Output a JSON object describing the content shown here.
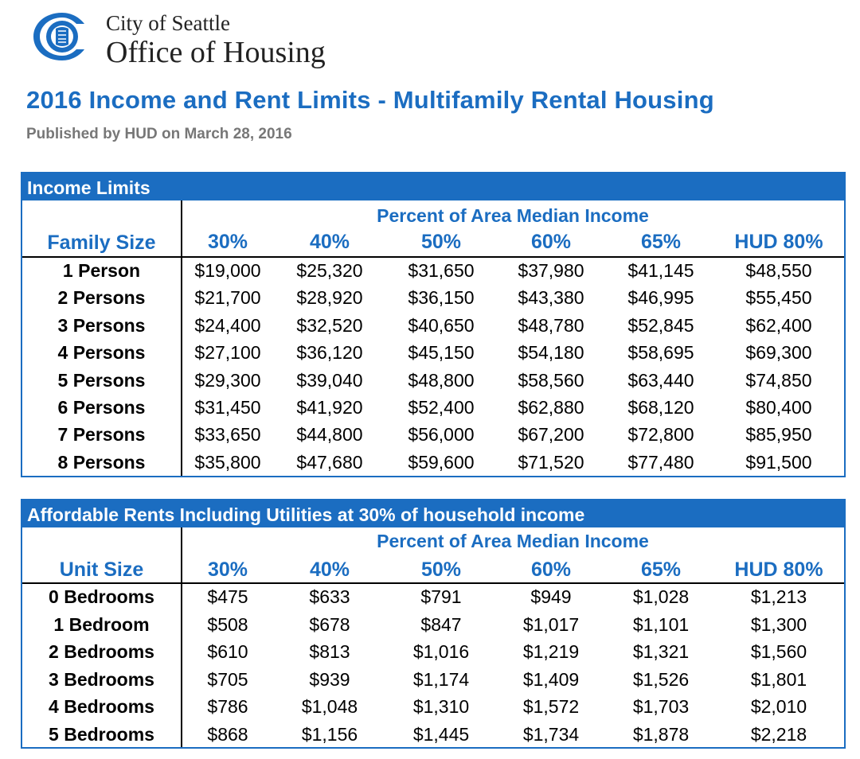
{
  "header": {
    "org_line1": "City of Seattle",
    "org_line2": "Office of Housing",
    "title": "2016 Income and Rent Limits - Multifamily Rental Housing",
    "subtitle": "Published by HUD on March 28, 2016"
  },
  "colors": {
    "accent": "#1b6dc1",
    "subtitle": "#777777"
  },
  "income_table": {
    "section_title": "Income Limits",
    "percent_header": "Percent of Area Median Income",
    "row_header": "Family Size",
    "columns": [
      "30%",
      "40%",
      "50%",
      "60%",
      "65%",
      "HUD 80%"
    ],
    "rows": [
      {
        "label": "1 Person",
        "values": [
          "$19,000",
          "$25,320",
          "$31,650",
          "$37,980",
          "$41,145",
          "$48,550"
        ]
      },
      {
        "label": "2 Persons",
        "values": [
          "$21,700",
          "$28,920",
          "$36,150",
          "$43,380",
          "$46,995",
          "$55,450"
        ]
      },
      {
        "label": "3 Persons",
        "values": [
          "$24,400",
          "$32,520",
          "$40,650",
          "$48,780",
          "$52,845",
          "$62,400"
        ]
      },
      {
        "label": "4 Persons",
        "values": [
          "$27,100",
          "$36,120",
          "$45,150",
          "$54,180",
          "$58,695",
          "$69,300"
        ]
      },
      {
        "label": "5 Persons",
        "values": [
          "$29,300",
          "$39,040",
          "$48,800",
          "$58,560",
          "$63,440",
          "$74,850"
        ]
      },
      {
        "label": "6 Persons",
        "values": [
          "$31,450",
          "$41,920",
          "$52,400",
          "$62,880",
          "$68,120",
          "$80,400"
        ]
      },
      {
        "label": "7 Persons",
        "values": [
          "$33,650",
          "$44,800",
          "$56,000",
          "$67,200",
          "$72,800",
          "$85,950"
        ]
      },
      {
        "label": "8 Persons",
        "values": [
          "$35,800",
          "$47,680",
          "$59,600",
          "$71,520",
          "$77,480",
          "$91,500"
        ]
      }
    ]
  },
  "rent_table": {
    "section_title": "Affordable Rents Including Utilities at 30% of household income",
    "percent_header": "Percent of Area Median Income",
    "row_header": "Unit Size",
    "columns": [
      "30%",
      "40%",
      "50%",
      "60%",
      "65%",
      "HUD 80%"
    ],
    "rows": [
      {
        "label": "0 Bedrooms",
        "values": [
          "$475",
          "$633",
          "$791",
          "$949",
          "$1,028",
          "$1,213"
        ]
      },
      {
        "label": "1 Bedroom",
        "values": [
          "$508",
          "$678",
          "$847",
          "$1,017",
          "$1,101",
          "$1,300"
        ]
      },
      {
        "label": "2 Bedrooms",
        "values": [
          "$610",
          "$813",
          "$1,016",
          "$1,219",
          "$1,321",
          "$1,560"
        ]
      },
      {
        "label": "3 Bedrooms",
        "values": [
          "$705",
          "$939",
          "$1,174",
          "$1,409",
          "$1,526",
          "$1,801"
        ]
      },
      {
        "label": "4 Bedrooms",
        "values": [
          "$786",
          "$1,048",
          "$1,310",
          "$1,572",
          "$1,703",
          "$2,010"
        ]
      },
      {
        "label": "5 Bedrooms",
        "values": [
          "$868",
          "$1,156",
          "$1,445",
          "$1,734",
          "$1,878",
          "$2,218"
        ]
      }
    ]
  }
}
